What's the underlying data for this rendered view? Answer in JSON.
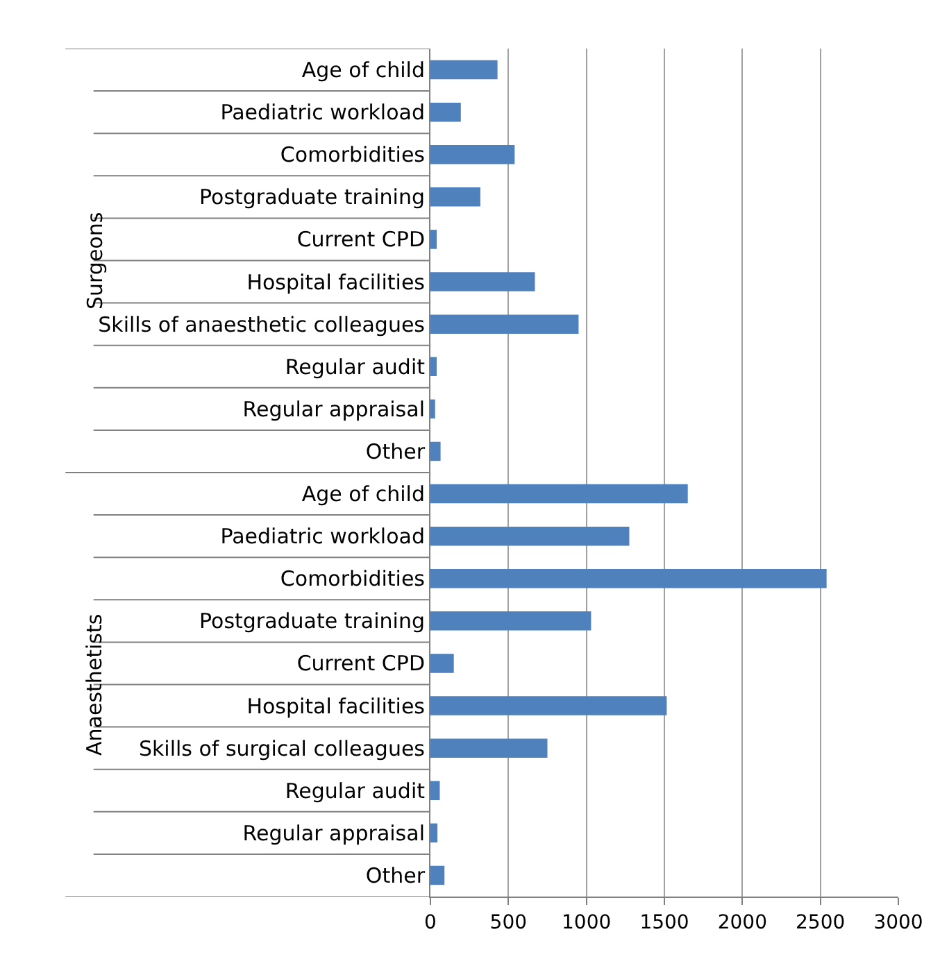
{
  "chart_data": {
    "type": "bar",
    "orientation": "horizontal",
    "categories": [
      "Age of child",
      "Paediatric workload",
      "Comorbidities",
      "Postgraduate training",
      "Current CPD",
      "Hospital facilities",
      "Skills of anaesthetic colleagues",
      "Regular audit",
      "Regular appraisal",
      "Other",
      "Age of child",
      "Paediatric workload",
      "Comorbidities",
      "Postgraduate training",
      "Current CPD",
      "Hospital facilities",
      "Skills of surgical colleagues",
      "Regular audit",
      "Regular appraisal",
      "Other"
    ],
    "values": [
      430,
      195,
      540,
      320,
      40,
      670,
      950,
      40,
      30,
      65,
      1650,
      1275,
      2540,
      1030,
      150,
      1515,
      750,
      60,
      45,
      90
    ],
    "color": "#4f81bd",
    "xlim": [
      0,
      3000
    ],
    "xticks": [
      0,
      500,
      1000,
      1500,
      2000,
      2500,
      3000
    ],
    "grid": "x",
    "annotations": [
      "Surgeons",
      "Anaesthetists"
    ]
  }
}
